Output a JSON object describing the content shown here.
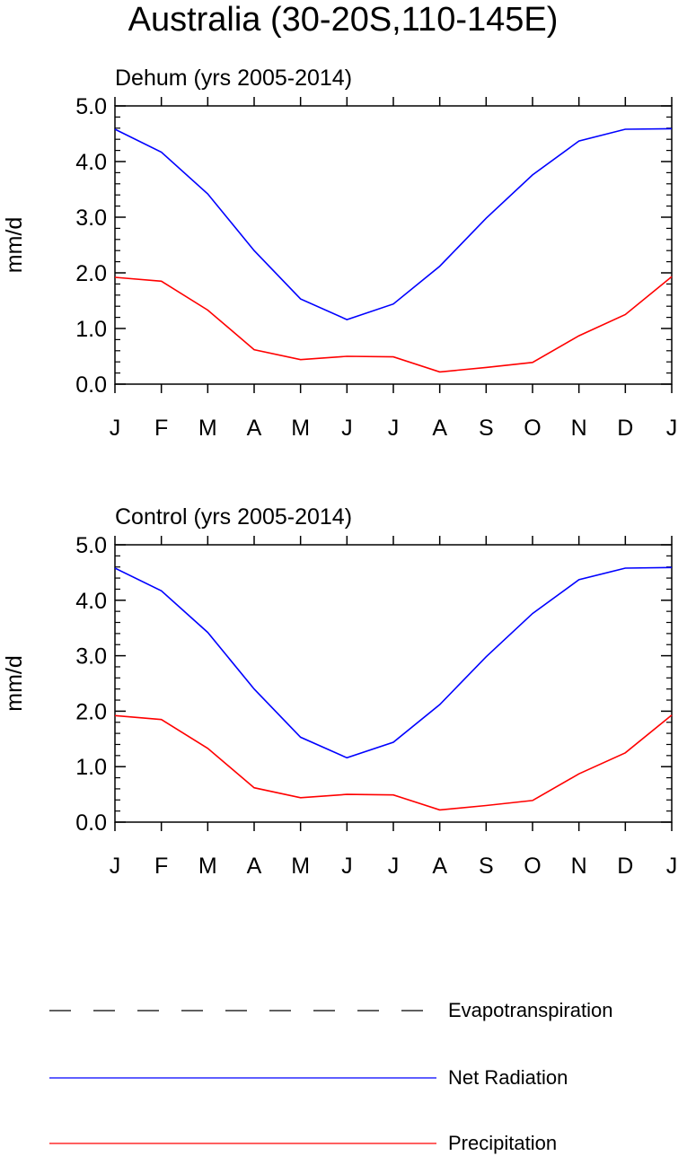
{
  "figure_title": "Australia (30-20S,110-145E)",
  "colors": {
    "net_radiation": "#0000ff",
    "precipitation": "#ff0000",
    "evapotranspiration": "#000000"
  },
  "legend": [
    {
      "name": "Evapotranspiration",
      "style": "dashed",
      "color": "#000000"
    },
    {
      "name": "Net Radiation",
      "style": "solid",
      "color": "#0000ff"
    },
    {
      "name": "Precipitation",
      "style": "solid",
      "color": "#ff0000"
    }
  ],
  "chart_data": [
    {
      "type": "line",
      "title": "Dehum (yrs 2005-2014)",
      "xlabel": "",
      "ylabel": "mm/d",
      "ylim": [
        0,
        5
      ],
      "yticks": [
        "0.0",
        "1.0",
        "2.0",
        "3.0",
        "4.0",
        "5.0"
      ],
      "categories": [
        "J",
        "F",
        "M",
        "A",
        "M",
        "J",
        "J",
        "A",
        "S",
        "O",
        "N",
        "D",
        "J"
      ],
      "series": [
        {
          "name": "Net Radiation",
          "values": [
            4.58,
            4.17,
            3.42,
            2.4,
            1.53,
            1.16,
            1.44,
            2.12,
            2.98,
            3.76,
            4.37,
            4.58,
            4.59
          ]
        },
        {
          "name": "Precipitation",
          "values": [
            1.92,
            1.85,
            1.33,
            0.62,
            0.44,
            0.5,
            0.49,
            0.22,
            0.3,
            0.39,
            0.87,
            1.25,
            1.93
          ]
        }
      ]
    },
    {
      "type": "line",
      "title": "Control (yrs 2005-2014)",
      "xlabel": "",
      "ylabel": "mm/d",
      "ylim": [
        0,
        5
      ],
      "yticks": [
        "0.0",
        "1.0",
        "2.0",
        "3.0",
        "4.0",
        "5.0"
      ],
      "categories": [
        "J",
        "F",
        "M",
        "A",
        "M",
        "J",
        "J",
        "A",
        "S",
        "O",
        "N",
        "D",
        "J"
      ],
      "series": [
        {
          "name": "Net Radiation",
          "values": [
            4.58,
            4.17,
            3.42,
            2.4,
            1.53,
            1.16,
            1.44,
            2.12,
            2.98,
            3.76,
            4.37,
            4.58,
            4.59
          ]
        },
        {
          "name": "Precipitation",
          "values": [
            1.92,
            1.85,
            1.33,
            0.62,
            0.44,
            0.5,
            0.49,
            0.22,
            0.3,
            0.39,
            0.87,
            1.25,
            1.93
          ]
        }
      ]
    }
  ]
}
